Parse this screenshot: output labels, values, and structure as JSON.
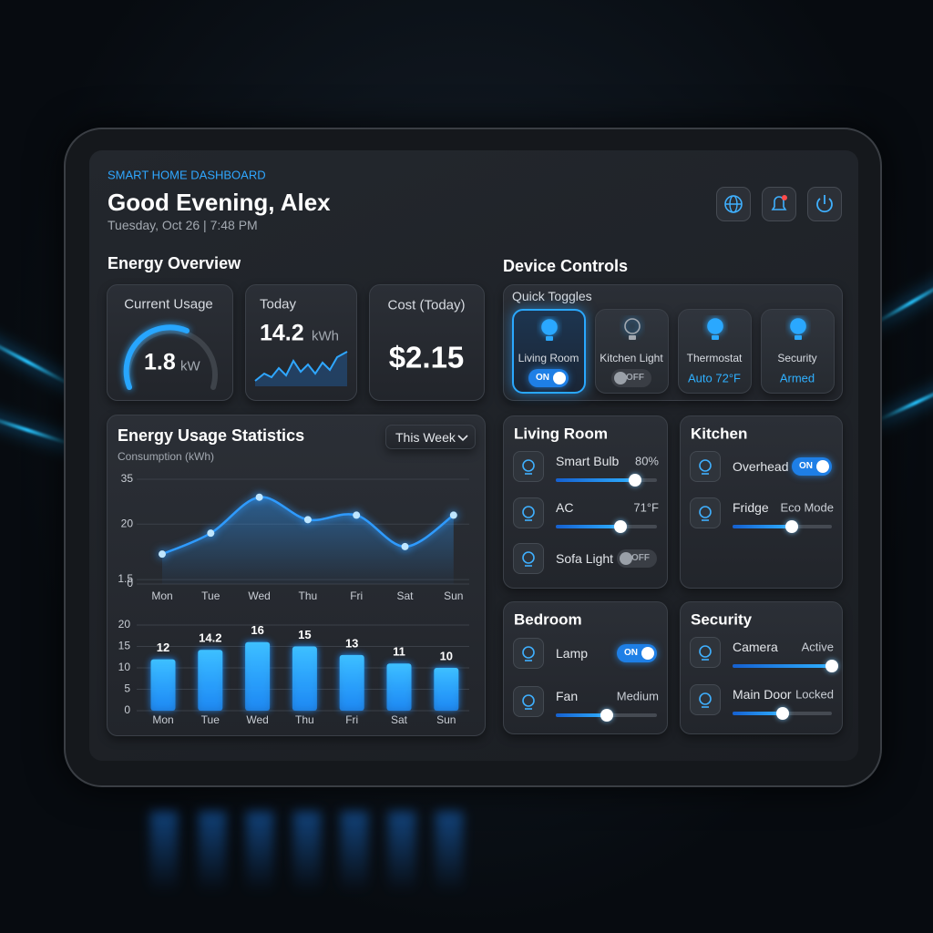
{
  "header": {
    "subtitle": "SMART HOME DASHBOARD",
    "title": "Good Evening, Alex",
    "datetime": "Tuesday, Oct 26 | 7:48 PM"
  },
  "energy_overview": {
    "title": "Energy Overview",
    "current_usage": {
      "label": "Current Usage",
      "value": "1.8",
      "unit": "kW"
    },
    "today": {
      "label": "Today",
      "value": "14.2",
      "unit": "kWh"
    },
    "cost": {
      "label": "Cost (Today)",
      "value": "$2.15"
    }
  },
  "statistics": {
    "range": "This Week"
  },
  "chart_data": [
    {
      "type": "line",
      "title": "Energy Usage Statistics",
      "y_label": "Consumption (kWh)",
      "categories": [
        "Mon",
        "Tue",
        "Wed",
        "Thu",
        "Fri",
        "Sat",
        "Sun"
      ],
      "values": [
        10,
        17,
        29,
        21.5,
        23,
        12.5,
        23
      ],
      "color": "#2f9bff",
      "ylim": [
        0,
        35
      ],
      "yticks": [
        0,
        1.5,
        20,
        35
      ],
      "grid": true
    },
    {
      "type": "bar",
      "categories": [
        "Mon",
        "Tue",
        "Wed",
        "Thu",
        "Fri",
        "Sat",
        "Sun"
      ],
      "values": [
        12,
        14.2,
        16,
        15,
        13,
        11,
        10
      ],
      "color": "#1e8fff",
      "ylim": [
        0,
        20
      ],
      "yticks": [
        0,
        5,
        10,
        15,
        20
      ],
      "grid": true
    }
  ],
  "device_controls": {
    "title": "Device Controls",
    "quick_toggles": {
      "title": "Quick Toggles",
      "items": [
        {
          "label": "Living Room",
          "state": "ON"
        },
        {
          "label": "Kitchen Light",
          "state": "OFF"
        },
        {
          "label": "Thermostat",
          "state": "Auto 72°F"
        },
        {
          "label": "Security",
          "state": "Armed"
        }
      ]
    }
  },
  "rooms": [
    {
      "title": "Living Room",
      "devices": [
        {
          "name": "Smart Bulb",
          "status": "80%"
        },
        {
          "name": "AC",
          "status": "71°F"
        },
        {
          "name": "Sofa Light",
          "status": "OFF"
        }
      ]
    },
    {
      "title": "Kitchen",
      "devices": [
        {
          "name": "Overhead",
          "status": "ON"
        },
        {
          "name": "Fridge",
          "status": "Eco Mode"
        }
      ]
    },
    {
      "title": "Bedroom",
      "devices": [
        {
          "name": "Lamp",
          "status": "ON"
        },
        {
          "name": "Fan",
          "status": "Medium"
        }
      ]
    },
    {
      "title": "Security",
      "devices": [
        {
          "name": "Camera",
          "status": "Active"
        },
        {
          "name": "Main Door",
          "status": "Locked"
        }
      ]
    }
  ]
}
